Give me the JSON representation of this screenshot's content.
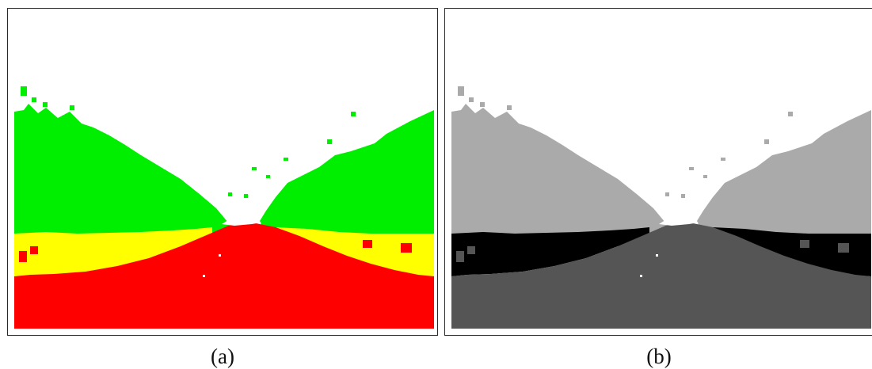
{
  "panels": [
    {
      "label": "(a)",
      "colors": {
        "sky": "#ffffff",
        "vegetation": "#00ee00",
        "transition": "#ffff00",
        "road": "#ff0000"
      }
    },
    {
      "label": "(b)",
      "colors": {
        "sky": "#ffffff",
        "vegetation": "#aaaaaa",
        "transition": "#000000",
        "road": "#555555"
      }
    }
  ]
}
